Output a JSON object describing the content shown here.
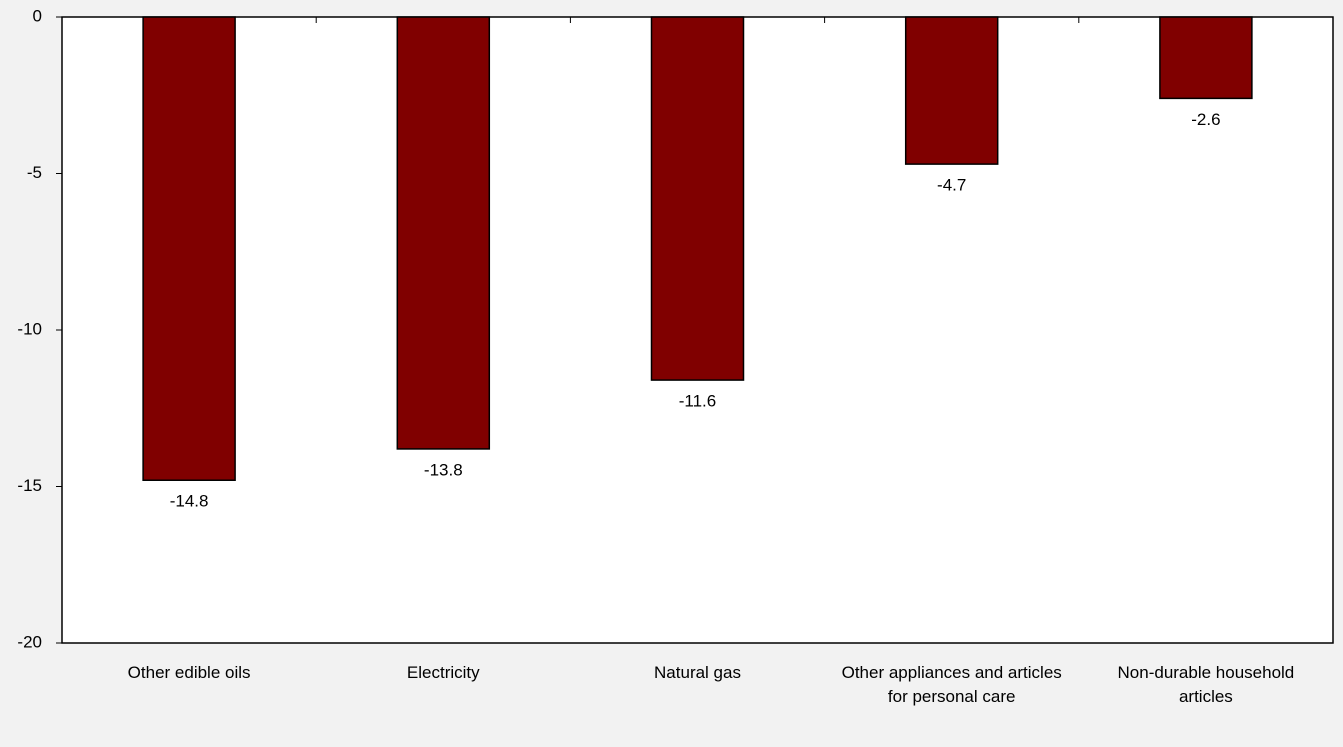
{
  "chart_data": {
    "type": "bar",
    "categories": [
      "Other edible oils",
      "Electricity",
      "Natural gas",
      "Other appliances and articles for personal care",
      "Non-durable household articles"
    ],
    "values": [
      -14.8,
      -13.8,
      -11.6,
      -4.7,
      -2.6
    ],
    "color": "#800000",
    "ylim": [
      -20,
      0
    ],
    "yticks": [
      0,
      -5,
      -10,
      -15,
      -20
    ],
    "grid": false
  }
}
